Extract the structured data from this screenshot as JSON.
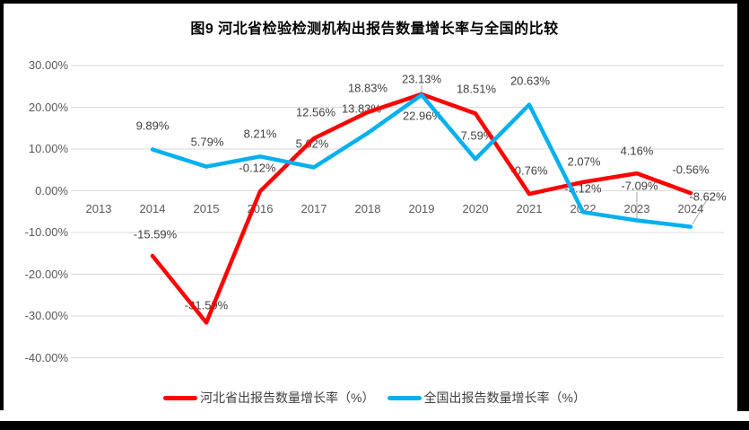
{
  "title": "图9 河北省检验检测机构出报告数量增长率与全国的比较",
  "colors": {
    "hebei_line": "#FF0000",
    "national_line": "#00B0F0",
    "gridline": "#D9D9D9",
    "axis_text": "#595959",
    "data_label_text": "#404040",
    "leader_line": "#A6A6A6",
    "frame": "#000000"
  },
  "chart_data": {
    "type": "line",
    "title": "图9 河北省检验检测机构出报告数量增长率与全国的比较",
    "categories": [
      "2013",
      "2014",
      "2015",
      "2016",
      "2017",
      "2018",
      "2019",
      "2020",
      "2021",
      "2022",
      "2023",
      "2024"
    ],
    "series": [
      {
        "name": "河北省出报告数量增长率（%）",
        "color": "#FF0000",
        "values": [
          null,
          -15.59,
          -31.59,
          -0.12,
          12.56,
          18.83,
          23.13,
          18.51,
          -0.76,
          2.07,
          4.16,
          -0.56
        ],
        "labels": [
          null,
          "-15.59%",
          "-31.59%",
          "-0.12%",
          "12.56%",
          "18.83%",
          "23.13%",
          "18.51%",
          "-0.76%",
          "2.07%",
          "4.16%",
          "-0.56%"
        ]
      },
      {
        "name": "全国出报告数量增长率（%）",
        "color": "#00B0F0",
        "values": [
          null,
          9.89,
          5.79,
          8.21,
          5.62,
          13.83,
          22.96,
          7.59,
          20.63,
          -5.12,
          -7.09,
          -8.62
        ],
        "labels": [
          null,
          "9.89%",
          "5.79%",
          "8.21%",
          "5.62%",
          "13.83%",
          "22.96%",
          "7.59%",
          "20.63%",
          "-5.12%",
          "-7.09%",
          "-8.62%"
        ]
      }
    ],
    "y_tick_labels": [
      "30.00%",
      "20.00%",
      "10.00%",
      "0.00%",
      "-10.00%",
      "-20.00%",
      "-30.00%",
      "-40.00%"
    ],
    "y_tick_values": [
      30,
      20,
      10,
      0,
      -10,
      -20,
      -30,
      -40
    ],
    "ylim": [
      -40,
      30
    ],
    "grid": true,
    "legend_position": "bottom"
  }
}
